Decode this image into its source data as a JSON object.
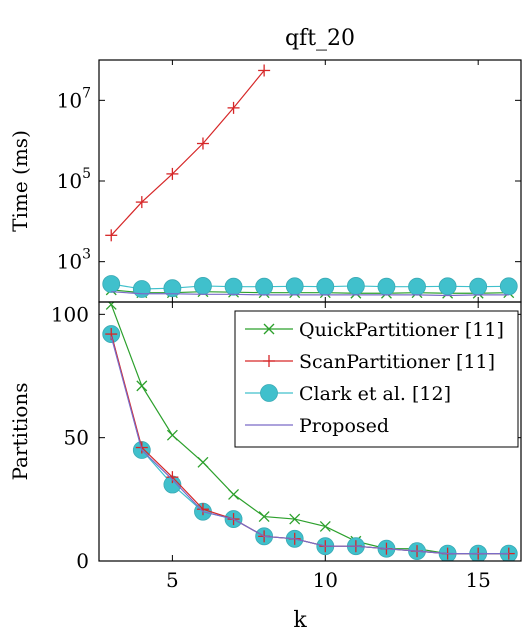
{
  "title": "qft_20",
  "chart_data": [
    {
      "type": "line",
      "title": "qft_20",
      "xlabel": "",
      "ylabel": "Time (ms)",
      "yscale": "log",
      "ylim": [
        100,
        100000000
      ],
      "yticks": [
        1000,
        100000,
        10000000
      ],
      "ytick_labels": [
        {
          "base": "10",
          "exp": "3"
        },
        {
          "base": "10",
          "exp": "5"
        },
        {
          "base": "10",
          "exp": "7"
        }
      ],
      "x": [
        3,
        4,
        5,
        6,
        7,
        8,
        9,
        10,
        11,
        12,
        13,
        14,
        15,
        16
      ],
      "series": [
        {
          "name": "QuickPartitioner [11]",
          "color": "#2ca02c",
          "marker": "x",
          "values": [
            200,
            170,
            170,
            180,
            175,
            170,
            170,
            170,
            165,
            165,
            170,
            165,
            165,
            170
          ]
        },
        {
          "name": "ScanPartitioner [11]",
          "color": "#d62728",
          "marker": "plus",
          "x": [
            3,
            4,
            5,
            6,
            7,
            8
          ],
          "values": [
            4500,
            30000,
            150000,
            850000,
            6500000,
            55000000
          ]
        },
        {
          "name": "Clark et al. [12]",
          "color": "#40c0cc",
          "marker": "circle",
          "values": [
            280,
            210,
            220,
            250,
            240,
            240,
            245,
            240,
            250,
            240,
            240,
            245,
            240,
            245
          ]
        },
        {
          "name": "Proposed",
          "color": "#7b6bc7",
          "marker": "none",
          "values": [
            180,
            160,
            160,
            155,
            155,
            150,
            150,
            150,
            150,
            150,
            150,
            145,
            150,
            150
          ]
        }
      ]
    },
    {
      "type": "line",
      "xlabel": "k",
      "ylabel": "Partitions",
      "xlim": [
        2.6,
        16.4
      ],
      "ylim": [
        0,
        105
      ],
      "xticks": [
        5,
        10,
        15
      ],
      "yticks": [
        0,
        50,
        100
      ],
      "legend": "top-right",
      "x": [
        3,
        4,
        5,
        6,
        7,
        8,
        9,
        10,
        11,
        12,
        13,
        14,
        15,
        16
      ],
      "series": [
        {
          "name": "QuickPartitioner [11]",
          "color": "#2ca02c",
          "marker": "x",
          "values": [
            104,
            71,
            51,
            40,
            27,
            18,
            17,
            14,
            8,
            5,
            5,
            3,
            3,
            3
          ]
        },
        {
          "name": "ScanPartitioner [11]",
          "color": "#d62728",
          "marker": "plus",
          "values": [
            92,
            46,
            34,
            21,
            17,
            10,
            9,
            6,
            6,
            5,
            4,
            3,
            3,
            3
          ]
        },
        {
          "name": "Clark et al. [12]",
          "color": "#40c0cc",
          "marker": "circle",
          "values": [
            92,
            45,
            31,
            20,
            17,
            10,
            9,
            6,
            6,
            5,
            4,
            3,
            3,
            3
          ]
        },
        {
          "name": "Proposed",
          "color": "#7b6bc7",
          "marker": "none",
          "values": [
            91,
            45,
            33,
            20,
            17,
            10,
            9,
            6,
            6,
            5,
            4,
            3,
            3,
            3
          ]
        }
      ]
    }
  ]
}
